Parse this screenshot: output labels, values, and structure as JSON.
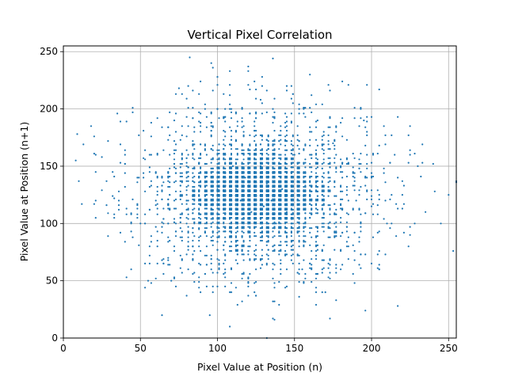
{
  "chart_data": {
    "type": "scatter",
    "title": "Vertical Pixel Correlation",
    "xlabel": "Pixel Value at Position (n)",
    "ylabel": "Pixel Value at Position (n+1)",
    "xlim": [
      0,
      255
    ],
    "ylim": [
      0,
      255
    ],
    "xticks": [
      0,
      50,
      100,
      150,
      200,
      250
    ],
    "yticks": [
      0,
      50,
      100,
      150,
      200,
      250
    ],
    "grid": true,
    "marker_color": "#1f77b4",
    "series": [
      {
        "points_estimated": {
          "description_counts": 6000,
          "dense_core": {
            "x_center": 125,
            "y_center": 125,
            "x_spread": 28,
            "y_spread": 22
          },
          "outer_spread": {
            "x_spread": 38,
            "y_spread": 38
          },
          "sample_points": [
            [
              8,
              155
            ],
            [
              9,
              178
            ],
            [
              10,
              137
            ],
            [
              18,
              185
            ],
            [
              25,
              158
            ],
            [
              28,
              137
            ],
            [
              33,
              122
            ],
            [
              35,
              196
            ],
            [
              40,
              160
            ],
            [
              45,
              88
            ],
            [
              50,
              100
            ],
            [
              55,
              50
            ],
            [
              68,
              70
            ],
            [
              70,
              50
            ],
            [
              72,
              190
            ],
            [
              75,
              218
            ],
            [
              80,
              150
            ],
            [
              82,
              245
            ],
            [
              88,
              95
            ],
            [
              95,
              20
            ],
            [
              96,
              240
            ],
            [
              100,
              130
            ],
            [
              105,
              200
            ],
            [
              108,
              10
            ],
            [
              110,
              150
            ],
            [
              112,
              130
            ],
            [
              115,
              120
            ],
            [
              118,
              140
            ],
            [
              120,
              125
            ],
            [
              122,
              110
            ],
            [
              125,
              128
            ],
            [
              128,
              150
            ],
            [
              130,
              115
            ],
            [
              132,
              135
            ],
            [
              135,
              120
            ],
            [
              138,
              100
            ],
            [
              140,
              145
            ],
            [
              142,
              130
            ],
            [
              145,
              110
            ],
            [
              150,
              160
            ],
            [
              155,
              60
            ],
            [
              160,
              230
            ],
            [
              165,
              190
            ],
            [
              170,
              40
            ],
            [
              175,
              170
            ],
            [
              180,
              150
            ],
            [
              185,
              80
            ],
            [
              190,
              120
            ],
            [
              195,
              190
            ],
            [
              200,
              115
            ],
            [
              205,
              60
            ],
            [
              210,
              100
            ],
            [
              215,
              160
            ],
            [
              220,
              125
            ],
            [
              225,
              90
            ],
            [
              230,
              150
            ],
            [
              235,
              110
            ],
            [
              240,
              152
            ],
            [
              245,
              100
            ],
            [
              250,
              125
            ]
          ]
        }
      }
    ]
  }
}
